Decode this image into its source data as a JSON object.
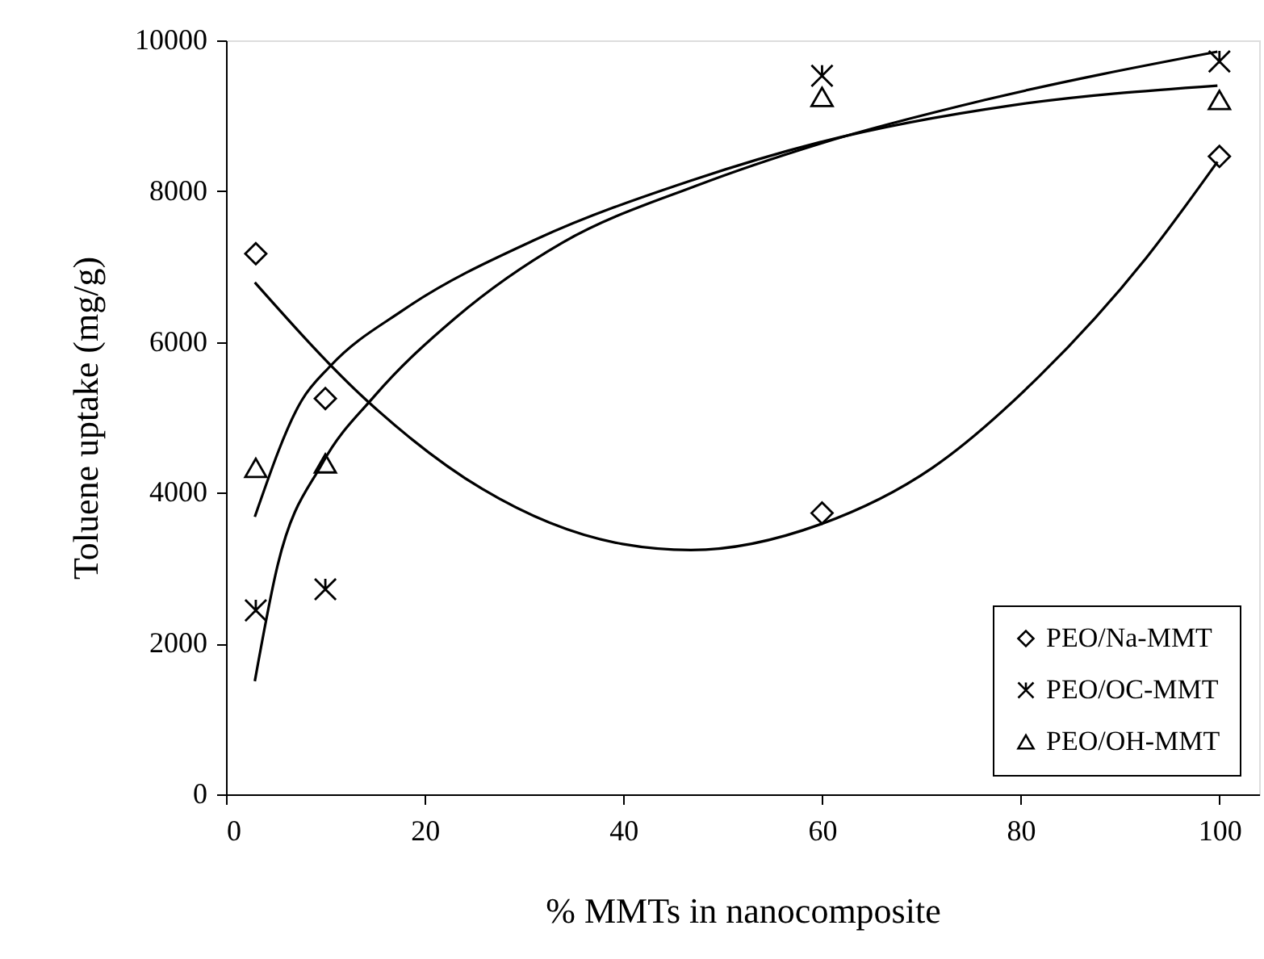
{
  "chart_data": {
    "type": "scatter",
    "xlabel": "% MMTs in nanocomposite",
    "ylabel": "Toluene uptake (mg/g)",
    "xlim": [
      0,
      104
    ],
    "xticks": [
      0,
      20,
      40,
      60,
      80,
      100
    ],
    "ylim": [
      0,
      10000
    ],
    "yticks": [
      0,
      2000,
      4000,
      6000,
      8000,
      10000
    ],
    "grid": false,
    "legend": "bottom right",
    "series": [
      {
        "name": "PEO/Na-MMT",
        "color": "#000000",
        "marker": "diamond",
        "x": [
          3,
          10,
          60,
          100
        ],
        "values": [
          7170,
          5250,
          3730,
          8460
        ]
      },
      {
        "name": "PEO/OC-MMT",
        "color": "#000000",
        "marker": "cross",
        "x": [
          3,
          10,
          60,
          100
        ],
        "values": [
          2440,
          2720,
          9530,
          9720
        ]
      },
      {
        "name": "PEO/OH-MMT",
        "color": "#000000",
        "marker": "triangle",
        "x": [
          3,
          10,
          60,
          100
        ],
        "values": [
          4330,
          4390,
          9250,
          9210
        ]
      },
      {
        "type": "line",
        "color": "#000000",
        "line_style": "solid",
        "x": [
          2.9,
          14.2,
          25.8,
          39.9,
          46.8,
          59.8,
          71.1,
          81.9,
          92.6,
          99.8
        ],
        "values": [
          6790,
          5220,
          4050,
          3320,
          3240,
          3580,
          4330,
          5550,
          7110,
          8390
        ]
      },
      {
        "type": "line",
        "color": "#000000",
        "line_style": "solid",
        "x": [
          2.9,
          5.2,
          9.7,
          15,
          23.1,
          33.9,
          47.3,
          59.8,
          76.4,
          99.8
        ],
        "values": [
          1500,
          3040,
          4390,
          5290,
          6320,
          7320,
          8070,
          8630,
          9210,
          9850
        ]
      },
      {
        "type": "line",
        "color": "#000000",
        "line_style": "solid",
        "x": [
          2.9,
          7.6,
          10.5,
          17.8,
          31.2,
          46.8,
          59.8,
          79.2,
          99.8
        ],
        "values": [
          3680,
          5220,
          5680,
          6420,
          7360,
          8140,
          8650,
          9140,
          9400
        ]
      }
    ]
  }
}
